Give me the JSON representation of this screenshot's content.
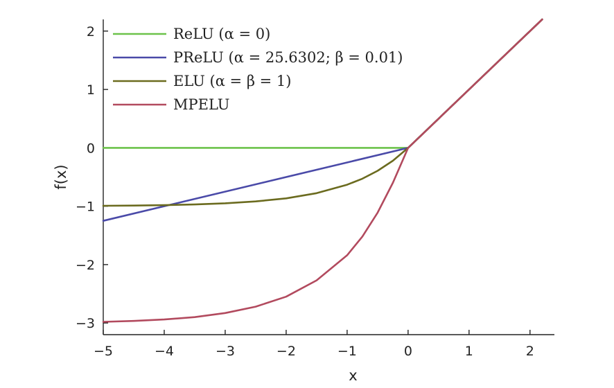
{
  "chart_data": {
    "type": "line",
    "title": "",
    "xlabel": "x",
    "ylabel": "f(x)",
    "xlim": [
      -5,
      2.4
    ],
    "ylim": [
      -3.2,
      2.2
    ],
    "xticks": [
      -5,
      -4,
      -3,
      -2,
      -1,
      0,
      1,
      2
    ],
    "xtick_labels": [
      "−5",
      "−4",
      "−3",
      "−2",
      "−1",
      "0",
      "1",
      "2"
    ],
    "yticks": [
      -3,
      -2,
      -1,
      0,
      1,
      2
    ],
    "ytick_labels": [
      "−3",
      "−2",
      "−1",
      "0",
      "1",
      "2"
    ],
    "grid": false,
    "legend_position": "top-left",
    "series": [
      {
        "name": "ReLU (α = 0)",
        "color": "#6cc24a",
        "x": [
          -5,
          0,
          2.2
        ],
        "y": [
          0,
          0,
          2.2
        ]
      },
      {
        "name": "PReLU (α = 25.6302; β = 0.01)",
        "color": "#4a4aa8",
        "x": [
          -5,
          0,
          2.2
        ],
        "y": [
          -1.25,
          0,
          2.2
        ]
      },
      {
        "name": "ELU (α = β = 1)",
        "color": "#6b6b1f",
        "x": [
          -5,
          -4.5,
          -4,
          -3.5,
          -3,
          -2.5,
          -2,
          -1.5,
          -1,
          -0.75,
          -0.5,
          -0.25,
          0,
          2.2
        ],
        "y": [
          -0.993,
          -0.989,
          -0.982,
          -0.97,
          -0.95,
          -0.918,
          -0.865,
          -0.777,
          -0.632,
          -0.528,
          -0.393,
          -0.221,
          0,
          2.2
        ]
      },
      {
        "name": "MPELU",
        "color": "#b24a5e",
        "x": [
          -5,
          -4.5,
          -4,
          -3.5,
          -3,
          -2.5,
          -2,
          -1.5,
          -1,
          -0.75,
          -0.5,
          -0.25,
          0,
          2.2
        ],
        "y": [
          -2.98,
          -2.965,
          -2.94,
          -2.9,
          -2.83,
          -2.72,
          -2.55,
          -2.27,
          -1.84,
          -1.52,
          -1.11,
          -0.6,
          0,
          2.2
        ]
      }
    ]
  }
}
